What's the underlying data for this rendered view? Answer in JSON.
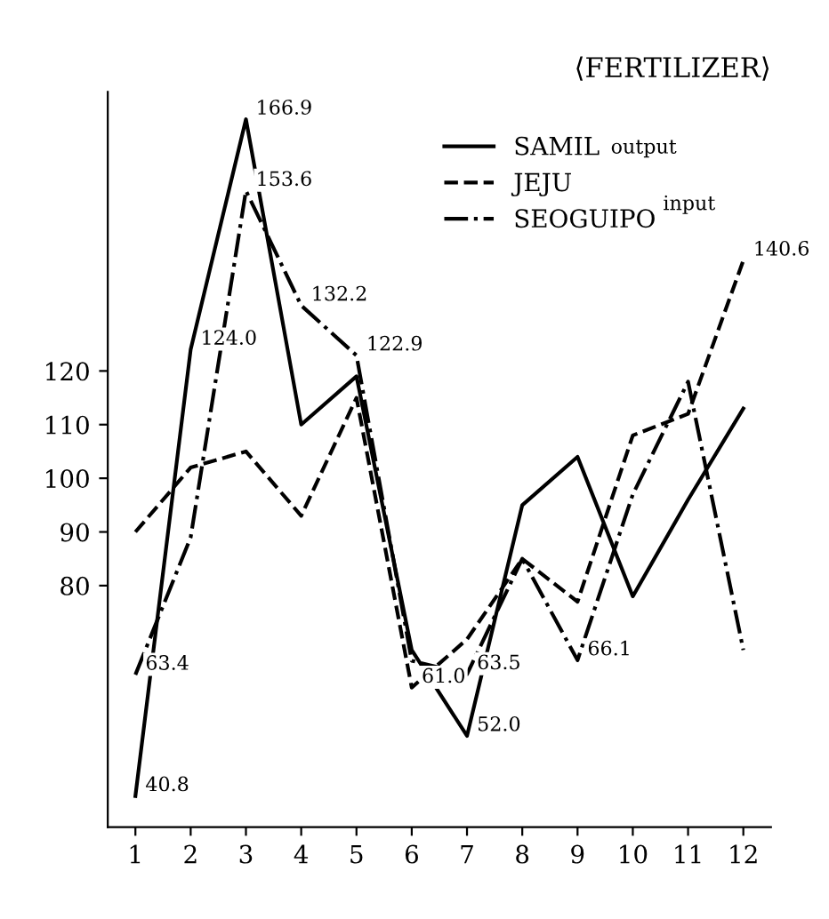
{
  "chart_data": {
    "type": "line",
    "title": "⟨FERTILIZER⟩",
    "categories": [
      "1",
      "2",
      "3",
      "4",
      "5",
      "6",
      "7",
      "8",
      "9",
      "10",
      "11",
      "12"
    ],
    "series": [
      {
        "name": "SAMIL",
        "color": "#000000",
        "line_style": "solid",
        "values": [
          40.8,
          124.0,
          166.9,
          110,
          119,
          68,
          52.0,
          95,
          104,
          78,
          96,
          113
        ]
      },
      {
        "name": "JEJU",
        "color": "#000000",
        "line_style": "dashed",
        "values": [
          90,
          102,
          105,
          93,
          115,
          61.0,
          70,
          85,
          77,
          108,
          112,
          140.6
        ]
      },
      {
        "name": "SEOGUIPO",
        "color": "#000000",
        "line_style": "dashdot",
        "values": [
          63.4,
          89,
          153.6,
          132.2,
          122.9,
          66,
          63.5,
          85,
          66.1,
          97,
          118,
          68
        ]
      }
    ],
    "ylim": [
      35,
      172
    ],
    "yticks": [
      80,
      90,
      100,
      110,
      120
    ],
    "legend": "top right",
    "grid": false,
    "marker": "none",
    "annotations": [
      "output",
      "input",
      {
        "text": "40.8",
        "x": "1",
        "y": 40.8
      },
      {
        "text": "63.4",
        "x": "1",
        "y": 63.4
      },
      {
        "text": "124.0",
        "x": "2",
        "y": 124.0
      },
      {
        "text": "166.9",
        "x": "3",
        "y": 166.9
      },
      {
        "text": "153.6",
        "x": "3",
        "y": 153.6
      },
      {
        "text": "132.2",
        "x": "4",
        "y": 132.2
      },
      {
        "text": "122.9",
        "x": "5",
        "y": 122.9
      },
      {
        "text": "61.0",
        "x": "6",
        "y": 61.0
      },
      {
        "text": "52.0",
        "x": "7",
        "y": 52.0
      },
      {
        "text": "63.5",
        "x": "7",
        "y": 63.5
      },
      {
        "text": "66.1",
        "x": "9",
        "y": 66.1
      },
      {
        "text": "140.6",
        "x": "12",
        "y": 140.6
      }
    ]
  }
}
